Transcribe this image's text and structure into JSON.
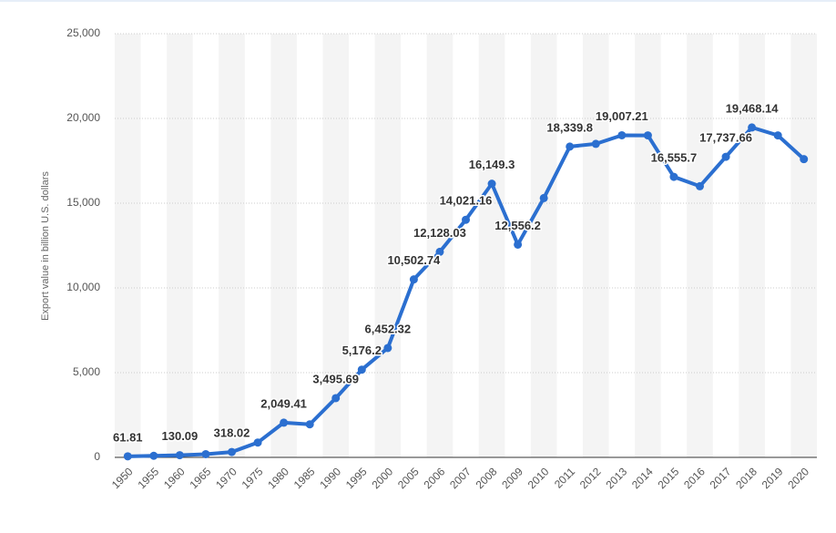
{
  "chart_data": {
    "type": "line",
    "y_label": "Export value in billion U.S. dollars",
    "categories": [
      "1950",
      "1955",
      "1960",
      "1965",
      "1970",
      "1975",
      "1980",
      "1985",
      "1990",
      "1995",
      "2000",
      "2005",
      "2006",
      "2007",
      "2008",
      "2009",
      "2010",
      "2011",
      "2012",
      "2013",
      "2014",
      "2015",
      "2016",
      "2017",
      "2018",
      "2019",
      "2020"
    ],
    "series": [
      {
        "name": "Export value",
        "color": "#2b6fd0",
        "values": [
          61.81,
          94,
          130.09,
          190,
          318.02,
          877,
          2049.41,
          1950,
          3495.69,
          5176.2,
          6452.32,
          10502.74,
          12128.03,
          14021.16,
          16149.3,
          12556.2,
          15300,
          18339.8,
          18500,
          19007.21,
          19000,
          16555.7,
          16000,
          17737.66,
          19468.14,
          19000,
          17600
        ],
        "value_labels": [
          "61.81",
          null,
          "130.09",
          null,
          "318.02",
          null,
          "2,049.41",
          null,
          "3,495.69",
          "5,176.2",
          "6,452.32",
          "10,502.74",
          "12,128.03",
          "14,021.16",
          "16,149.3",
          "12,556.2",
          null,
          "18,339.8",
          null,
          "19,007.21",
          null,
          "16,555.7",
          null,
          "17,737.66",
          "19,468.14",
          null,
          null
        ]
      }
    ],
    "ylim": [
      0,
      25000
    ],
    "yticks": [
      0,
      {
        "value": 5000,
        "label": "5,000"
      },
      {
        "value": 10000,
        "label": "10,000"
      },
      {
        "value": 15000,
        "label": "15,000"
      },
      {
        "value": 20000,
        "label": "20,000"
      },
      {
        "value": 25000,
        "label": "25,000"
      }
    ],
    "grid": true
  }
}
